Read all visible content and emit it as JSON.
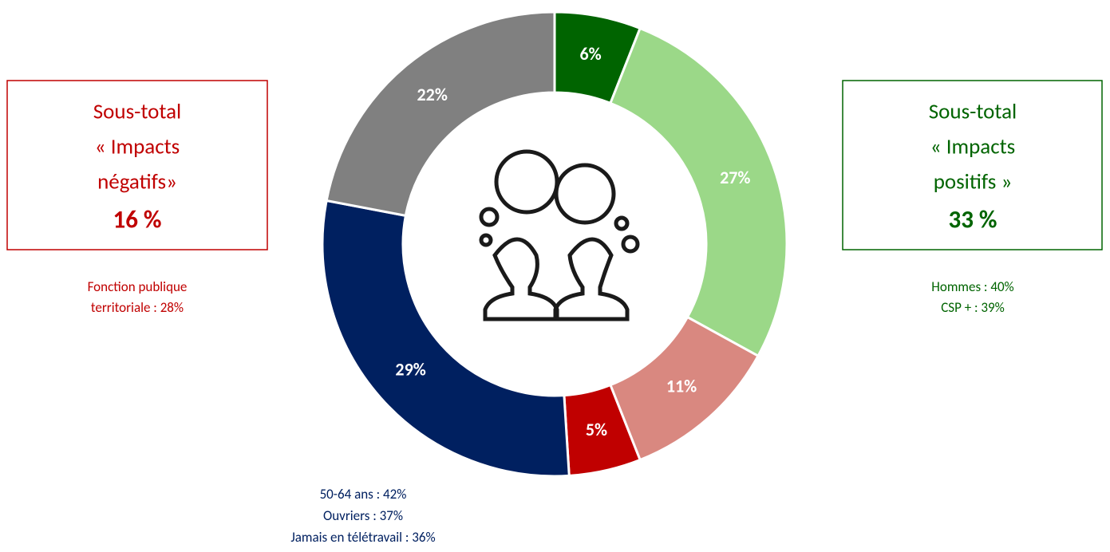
{
  "chart_data": {
    "type": "pie",
    "values": [
      6,
      27,
      11,
      5,
      29,
      22
    ],
    "value_labels": [
      "6%",
      "27%",
      "11%",
      "5%",
      "29%",
      "22%"
    ],
    "colors": [
      "#006400",
      "#9bd888",
      "#d98880",
      "#c00000",
      "#002060",
      "#808080"
    ],
    "annotations": {
      "negative": {
        "lines": [
          "Sous-total",
          "« Impacts",
          "négatifs»"
        ],
        "total": "16 %",
        "notes": [
          "Fonction publique",
          "territoriale : 28%"
        ],
        "color": "#c00000"
      },
      "positive": {
        "lines": [
          "Sous-total",
          "« Impacts",
          "positifs »"
        ],
        "total": "33 %",
        "notes": [
          "Hommes : 40%",
          "CSP + : 39%"
        ],
        "color": "#006400"
      },
      "bottom": {
        "notes": [
          "50-64 ans : 42%",
          "Ouvriers : 37%",
          "Jamais en télétravail : 36%"
        ],
        "color": "#002060"
      }
    }
  }
}
